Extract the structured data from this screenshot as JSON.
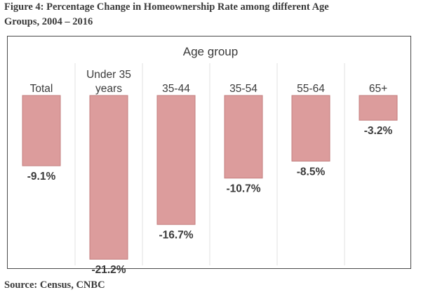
{
  "figure": {
    "title_line1": "Figure 4: Percentage Change in Homeownership Rate among different Age",
    "title_line2": "Groups, 2004 – 2016",
    "source": "Source: Census, CNBC"
  },
  "chart_data": {
    "type": "bar",
    "title": "Age group",
    "categories": [
      [
        "Total"
      ],
      [
        "Under 35",
        "years"
      ],
      [
        "35-44"
      ],
      [
        "35-54"
      ],
      [
        "55-64"
      ],
      [
        "65+"
      ]
    ],
    "values": [
      -9.1,
      -21.2,
      -16.7,
      -10.7,
      -8.5,
      -3.2
    ],
    "value_labels": [
      "-9.1%",
      "-21.2%",
      "-16.7%",
      "-10.7%",
      "-8.5%",
      "-3.2%"
    ],
    "unit": "%",
    "xlabel": "",
    "ylabel": "",
    "ylim": [
      -22,
      0
    ],
    "grid": false,
    "legend": "none",
    "colors": {
      "bar_fill": "#dc9c9c",
      "bar_stroke": "#c37e7e",
      "text": "#3a3a3a",
      "separator": "#e2e2e2",
      "frame": "#4a4a4a"
    }
  }
}
